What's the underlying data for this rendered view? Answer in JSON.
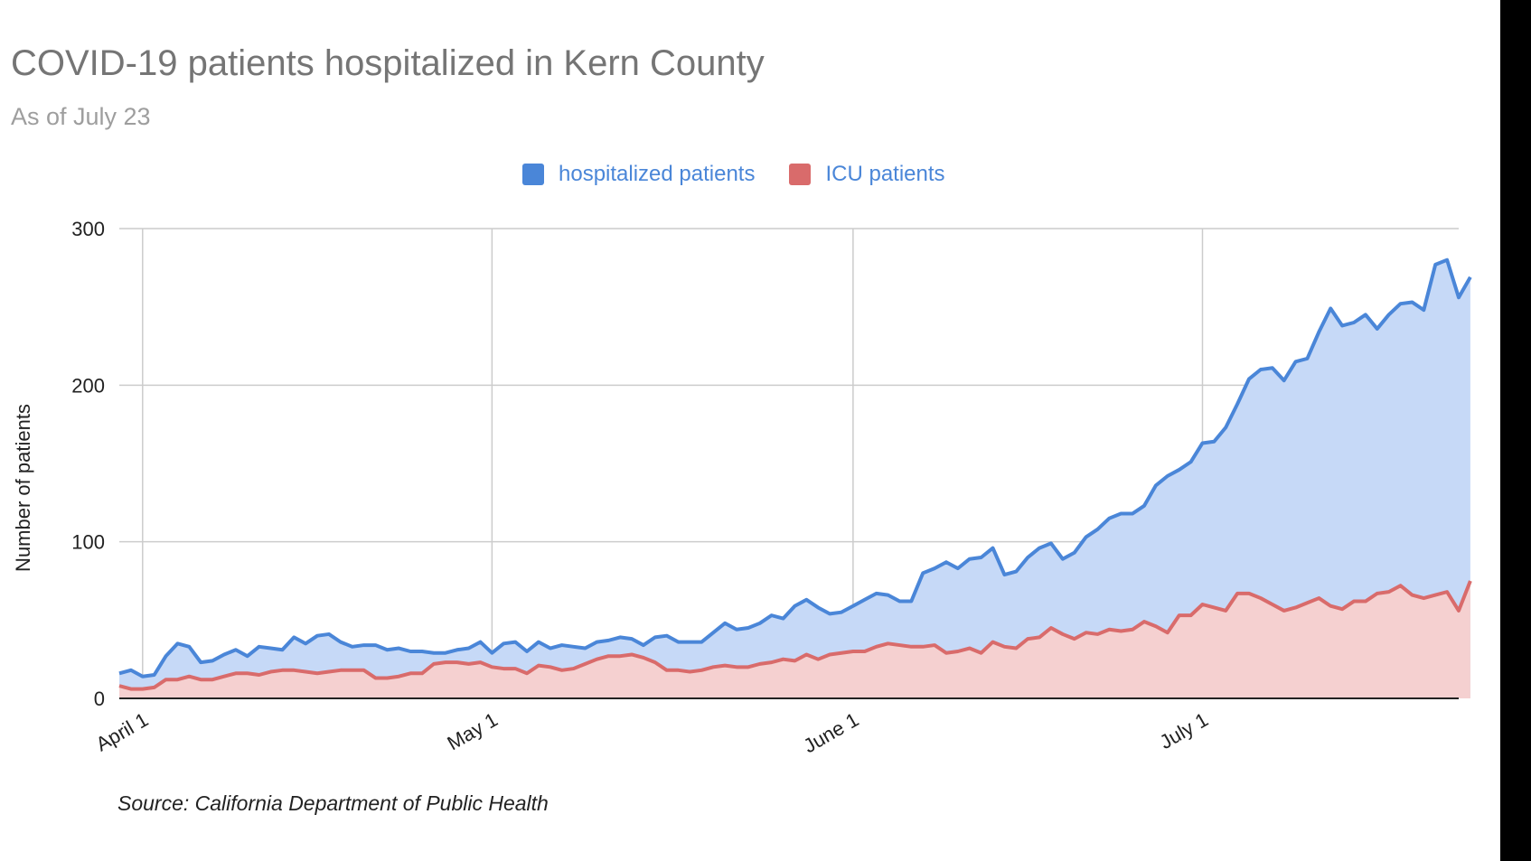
{
  "chart_data": {
    "type": "area",
    "title": "COVID-19 patients hospitalized in Kern County",
    "subtitle": "As of July 23",
    "ylabel": "Number of patients",
    "xlabel": "",
    "ylim": [
      0,
      300
    ],
    "yticks": [
      0,
      100,
      200,
      300
    ],
    "x_start": "2020-03-30",
    "x_end": "2020-07-23",
    "xticks": [
      {
        "date": "2020-04-01",
        "label": "April 1"
      },
      {
        "date": "2020-05-01",
        "label": "May 1"
      },
      {
        "date": "2020-06-01",
        "label": "June 1"
      },
      {
        "date": "2020-07-01",
        "label": "July 1"
      }
    ],
    "grid": true,
    "legend_position": "top",
    "series": [
      {
        "name": "hospitalized patients",
        "color": "#4a86d8",
        "fill": "#c6d9f7",
        "values": [
          16,
          18,
          14,
          15,
          27,
          35,
          33,
          23,
          24,
          28,
          31,
          27,
          33,
          32,
          31,
          39,
          35,
          40,
          41,
          36,
          33,
          34,
          34,
          31,
          32,
          30,
          30,
          29,
          29,
          31,
          32,
          36,
          29,
          35,
          36,
          30,
          36,
          32,
          34,
          33,
          32,
          36,
          37,
          39,
          38,
          34,
          39,
          40,
          36,
          36,
          36,
          42,
          48,
          44,
          45,
          48,
          53,
          51,
          59,
          63,
          58,
          54,
          55,
          59,
          63,
          67,
          66,
          62,
          62,
          80,
          83,
          87,
          83,
          89,
          90,
          96,
          79,
          81,
          90,
          96,
          99,
          89,
          93,
          103,
          108,
          115,
          118,
          118,
          123,
          136,
          142,
          146,
          151,
          163,
          164,
          173,
          188,
          204,
          210,
          211,
          203,
          215,
          217,
          234,
          249,
          238,
          240,
          245,
          236,
          245,
          252,
          253,
          248,
          277,
          280,
          256,
          269
        ]
      },
      {
        "name": "ICU patients",
        "color": "#d96b6b",
        "fill": "#f5d0d0",
        "values": [
          8,
          6,
          6,
          7,
          12,
          12,
          14,
          12,
          12,
          14,
          16,
          16,
          15,
          17,
          18,
          18,
          17,
          16,
          17,
          18,
          18,
          18,
          13,
          13,
          14,
          16,
          16,
          22,
          23,
          23,
          22,
          23,
          20,
          19,
          19,
          16,
          21,
          20,
          18,
          19,
          22,
          25,
          27,
          27,
          28,
          26,
          23,
          18,
          18,
          17,
          18,
          20,
          21,
          20,
          20,
          22,
          23,
          25,
          24,
          28,
          25,
          28,
          29,
          30,
          30,
          33,
          35,
          34,
          33,
          33,
          34,
          29,
          30,
          32,
          29,
          36,
          33,
          32,
          38,
          39,
          45,
          41,
          38,
          42,
          41,
          44,
          43,
          44,
          49,
          46,
          42,
          53,
          53,
          60,
          58,
          56,
          67,
          67,
          64,
          60,
          56,
          58,
          61,
          64,
          59,
          57,
          62,
          62,
          67,
          68,
          72,
          66,
          64,
          66,
          68,
          56,
          75
        ]
      }
    ]
  },
  "source": "Source: California Department of Public Health"
}
